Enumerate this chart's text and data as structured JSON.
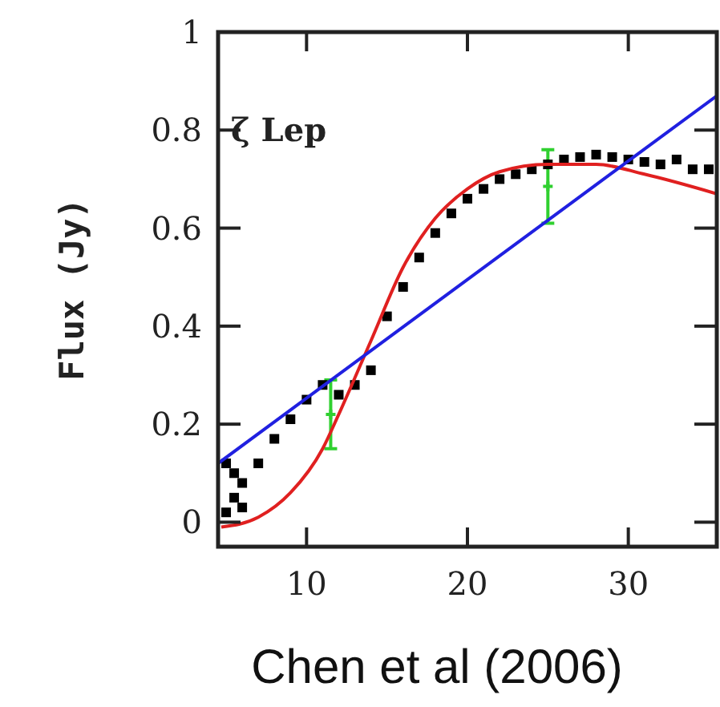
{
  "chart_data": {
    "type": "scatter",
    "ylabel": "Flux (Jy)",
    "xlim": [
      4.5,
      35.5
    ],
    "ylim": [
      -0.05,
      1
    ],
    "xticks": [
      10,
      20,
      30
    ],
    "yticks": [
      0,
      0.2,
      0.4,
      0.6,
      0.8,
      1
    ],
    "grid": false,
    "annotations": [
      "ζ Lep",
      "Chen et al (2006)"
    ],
    "series": [
      {
        "color": "#000000",
        "marker": "square",
        "x": [
          5,
          5,
          5.5,
          5.5,
          6,
          6,
          7,
          8,
          9,
          10,
          11,
          12,
          13,
          14,
          15,
          16,
          17,
          18,
          19,
          20,
          21,
          22,
          23,
          24,
          25,
          26,
          27,
          28,
          29,
          30,
          31,
          32,
          33,
          34,
          35
        ],
        "values": [
          0.02,
          0.12,
          0.05,
          0.1,
          0.03,
          0.08,
          0.12,
          0.17,
          0.21,
          0.25,
          0.28,
          0.26,
          0.28,
          0.31,
          0.42,
          0.48,
          0.54,
          0.59,
          0.63,
          0.66,
          0.68,
          0.7,
          0.71,
          0.72,
          0.73,
          0.74,
          0.745,
          0.75,
          0.745,
          0.74,
          0.735,
          0.73,
          0.74,
          0.72,
          0.72
        ]
      },
      {
        "type": "line",
        "color": "#e02020",
        "marker": "none",
        "x": [
          4.7,
          7,
          9,
          11,
          12,
          14,
          16,
          18,
          20,
          22,
          25,
          28,
          31,
          35.5
        ],
        "values": [
          -0.01,
          0.01,
          0.06,
          0.15,
          0.22,
          0.37,
          0.52,
          0.62,
          0.68,
          0.715,
          0.73,
          0.73,
          0.71,
          0.67
        ]
      },
      {
        "type": "line",
        "color": "#2020e0",
        "marker": "none",
        "x": [
          4.5,
          35.5
        ],
        "values": [
          0.12,
          0.87
        ]
      },
      {
        "color": "#30d030",
        "marker": "cross",
        "x": [
          11.5,
          25
        ],
        "values": [
          0.22,
          0.685
        ],
        "errors": [
          0.07,
          0.075
        ]
      }
    ]
  }
}
